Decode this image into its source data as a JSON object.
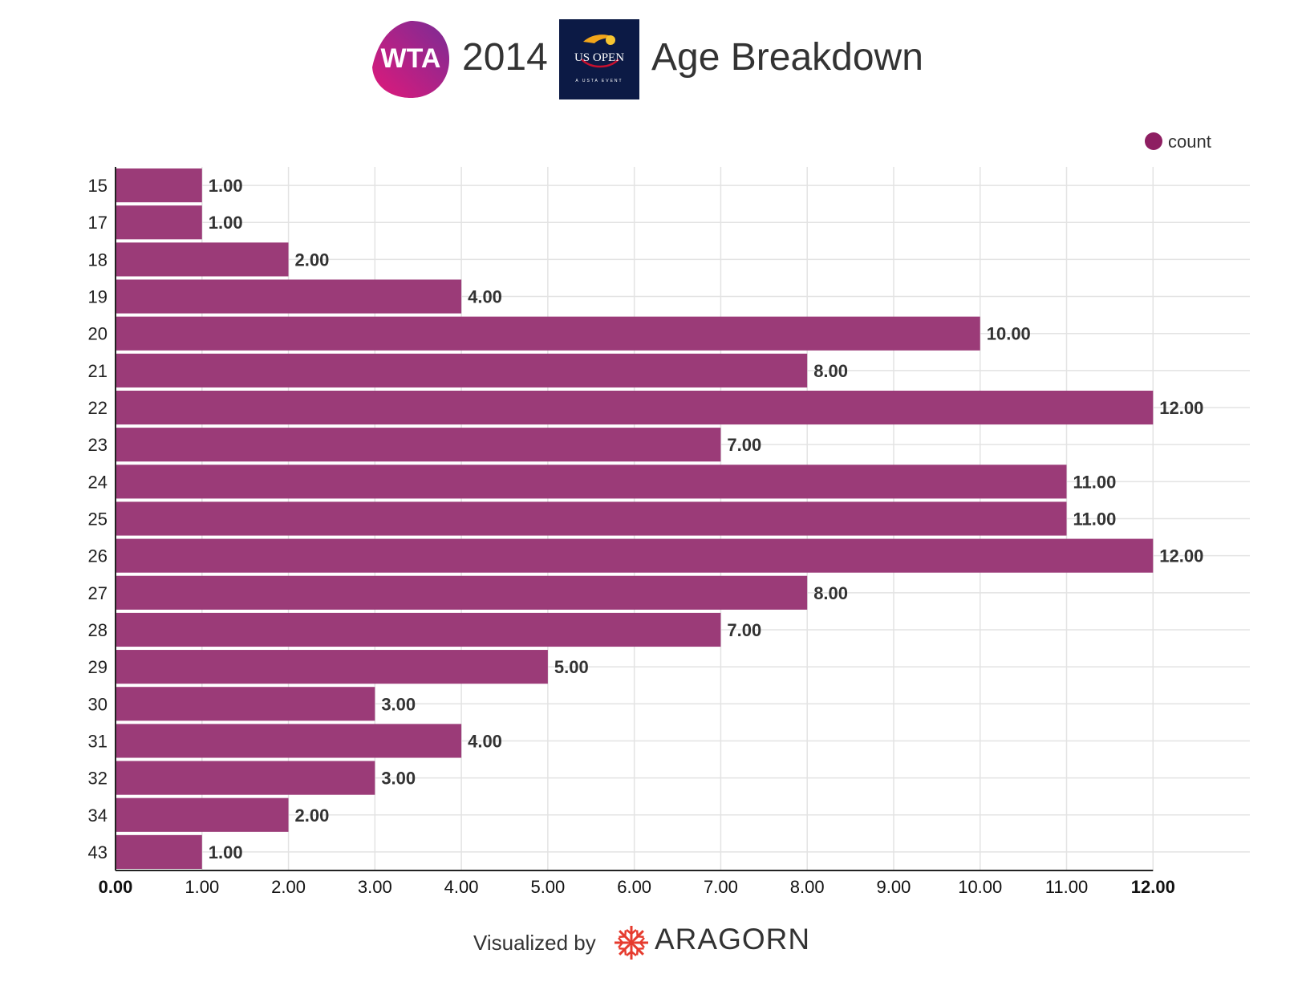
{
  "header": {
    "wta_logo_text": "WTA",
    "year": "2014",
    "usopen_logo_text": "US OPEN",
    "usopen_logo_subtext": "A USTA EVENT",
    "title": "Age Breakdown"
  },
  "colors": {
    "bar": "#9b3b78",
    "legend_dot": "#8e1f62",
    "wta_gradient_start": "#e0197a",
    "wta_gradient_end": "#7a2c95",
    "usopen_bg": "#0c1a45",
    "aragorn_red": "#e63b2e",
    "grid": "#e3e3e3"
  },
  "chart_data": {
    "type": "bar",
    "orientation": "horizontal",
    "categories": [
      "15",
      "17",
      "18",
      "19",
      "20",
      "21",
      "22",
      "23",
      "24",
      "25",
      "26",
      "27",
      "28",
      "29",
      "30",
      "31",
      "32",
      "34",
      "43"
    ],
    "series": [
      {
        "name": "count",
        "values": [
          1,
          1,
          2,
          4,
          10,
          8,
          12,
          7,
          11,
          11,
          12,
          8,
          7,
          5,
          3,
          4,
          3,
          2,
          1
        ],
        "labels": [
          "1.00",
          "1.00",
          "2.00",
          "4.00",
          "10.00",
          "8.00",
          "12.00",
          "7.00",
          "11.00",
          "11.00",
          "12.00",
          "8.00",
          "7.00",
          "5.00",
          "3.00",
          "4.00",
          "3.00",
          "2.00",
          "1.00"
        ]
      }
    ],
    "xlim": [
      0,
      13.12
    ],
    "x_ticks": [
      {
        "value": 0,
        "label": "0.00"
      },
      {
        "value": 1,
        "label": "1.00"
      },
      {
        "value": 2,
        "label": "2.00"
      },
      {
        "value": 3,
        "label": "3.00"
      },
      {
        "value": 4,
        "label": "4.00"
      },
      {
        "value": 5,
        "label": "5.00"
      },
      {
        "value": 6,
        "label": "6.00"
      },
      {
        "value": 7,
        "label": "7.00"
      },
      {
        "value": 8,
        "label": "8.00"
      },
      {
        "value": 9,
        "label": "9.00"
      },
      {
        "value": 10,
        "label": "10.00"
      },
      {
        "value": 11,
        "label": "11.00"
      },
      {
        "value": 12,
        "label": "12.00"
      }
    ],
    "bold_tick_values": [
      0,
      12
    ],
    "grid": true,
    "legend": {
      "position": "top-right",
      "label": "count"
    },
    "title": "Age Breakdown",
    "xlabel": "",
    "ylabel": ""
  },
  "footer": {
    "visualized_by": "Visualized by",
    "brand": "ARAGORN"
  }
}
